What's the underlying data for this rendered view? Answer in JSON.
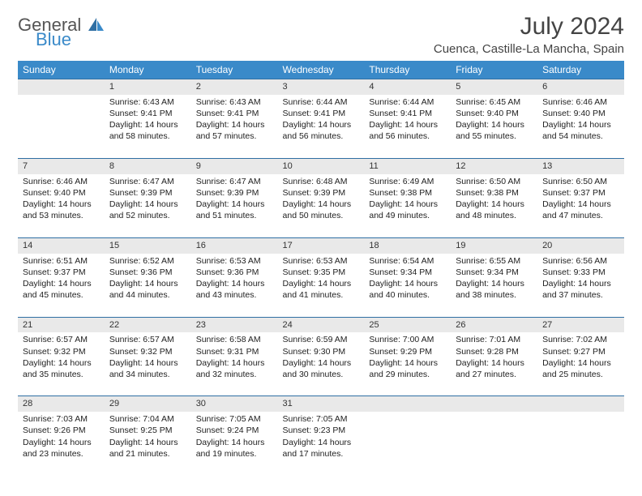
{
  "brand": {
    "general": "General",
    "blue": "Blue"
  },
  "header": {
    "month_title": "July 2024",
    "location": "Cuenca, Castille-La Mancha, Spain"
  },
  "colors": {
    "header_bg": "#3a8ac9",
    "header_text": "#ffffff",
    "daynum_bg": "#e9e9e9",
    "row_border": "#2f6fa3",
    "body_text": "#222222",
    "page_bg": "#ffffff"
  },
  "typography": {
    "title_fontsize_pt": 22,
    "location_fontsize_pt": 11,
    "header_fontsize_pt": 9,
    "cell_fontsize_pt": 8
  },
  "layout": {
    "columns": 7,
    "rows": 5,
    "first_day_offset": 1,
    "days_in_month": 31
  },
  "weekdays": [
    "Sunday",
    "Monday",
    "Tuesday",
    "Wednesday",
    "Thursday",
    "Friday",
    "Saturday"
  ],
  "days": [
    {
      "n": 1,
      "sunrise": "6:43 AM",
      "sunset": "9:41 PM",
      "daylight": "14 hours and 58 minutes."
    },
    {
      "n": 2,
      "sunrise": "6:43 AM",
      "sunset": "9:41 PM",
      "daylight": "14 hours and 57 minutes."
    },
    {
      "n": 3,
      "sunrise": "6:44 AM",
      "sunset": "9:41 PM",
      "daylight": "14 hours and 56 minutes."
    },
    {
      "n": 4,
      "sunrise": "6:44 AM",
      "sunset": "9:41 PM",
      "daylight": "14 hours and 56 minutes."
    },
    {
      "n": 5,
      "sunrise": "6:45 AM",
      "sunset": "9:40 PM",
      "daylight": "14 hours and 55 minutes."
    },
    {
      "n": 6,
      "sunrise": "6:46 AM",
      "sunset": "9:40 PM",
      "daylight": "14 hours and 54 minutes."
    },
    {
      "n": 7,
      "sunrise": "6:46 AM",
      "sunset": "9:40 PM",
      "daylight": "14 hours and 53 minutes."
    },
    {
      "n": 8,
      "sunrise": "6:47 AM",
      "sunset": "9:39 PM",
      "daylight": "14 hours and 52 minutes."
    },
    {
      "n": 9,
      "sunrise": "6:47 AM",
      "sunset": "9:39 PM",
      "daylight": "14 hours and 51 minutes."
    },
    {
      "n": 10,
      "sunrise": "6:48 AM",
      "sunset": "9:39 PM",
      "daylight": "14 hours and 50 minutes."
    },
    {
      "n": 11,
      "sunrise": "6:49 AM",
      "sunset": "9:38 PM",
      "daylight": "14 hours and 49 minutes."
    },
    {
      "n": 12,
      "sunrise": "6:50 AM",
      "sunset": "9:38 PM",
      "daylight": "14 hours and 48 minutes."
    },
    {
      "n": 13,
      "sunrise": "6:50 AM",
      "sunset": "9:37 PM",
      "daylight": "14 hours and 47 minutes."
    },
    {
      "n": 14,
      "sunrise": "6:51 AM",
      "sunset": "9:37 PM",
      "daylight": "14 hours and 45 minutes."
    },
    {
      "n": 15,
      "sunrise": "6:52 AM",
      "sunset": "9:36 PM",
      "daylight": "14 hours and 44 minutes."
    },
    {
      "n": 16,
      "sunrise": "6:53 AM",
      "sunset": "9:36 PM",
      "daylight": "14 hours and 43 minutes."
    },
    {
      "n": 17,
      "sunrise": "6:53 AM",
      "sunset": "9:35 PM",
      "daylight": "14 hours and 41 minutes."
    },
    {
      "n": 18,
      "sunrise": "6:54 AM",
      "sunset": "9:34 PM",
      "daylight": "14 hours and 40 minutes."
    },
    {
      "n": 19,
      "sunrise": "6:55 AM",
      "sunset": "9:34 PM",
      "daylight": "14 hours and 38 minutes."
    },
    {
      "n": 20,
      "sunrise": "6:56 AM",
      "sunset": "9:33 PM",
      "daylight": "14 hours and 37 minutes."
    },
    {
      "n": 21,
      "sunrise": "6:57 AM",
      "sunset": "9:32 PM",
      "daylight": "14 hours and 35 minutes."
    },
    {
      "n": 22,
      "sunrise": "6:57 AM",
      "sunset": "9:32 PM",
      "daylight": "14 hours and 34 minutes."
    },
    {
      "n": 23,
      "sunrise": "6:58 AM",
      "sunset": "9:31 PM",
      "daylight": "14 hours and 32 minutes."
    },
    {
      "n": 24,
      "sunrise": "6:59 AM",
      "sunset": "9:30 PM",
      "daylight": "14 hours and 30 minutes."
    },
    {
      "n": 25,
      "sunrise": "7:00 AM",
      "sunset": "9:29 PM",
      "daylight": "14 hours and 29 minutes."
    },
    {
      "n": 26,
      "sunrise": "7:01 AM",
      "sunset": "9:28 PM",
      "daylight": "14 hours and 27 minutes."
    },
    {
      "n": 27,
      "sunrise": "7:02 AM",
      "sunset": "9:27 PM",
      "daylight": "14 hours and 25 minutes."
    },
    {
      "n": 28,
      "sunrise": "7:03 AM",
      "sunset": "9:26 PM",
      "daylight": "14 hours and 23 minutes."
    },
    {
      "n": 29,
      "sunrise": "7:04 AM",
      "sunset": "9:25 PM",
      "daylight": "14 hours and 21 minutes."
    },
    {
      "n": 30,
      "sunrise": "7:05 AM",
      "sunset": "9:24 PM",
      "daylight": "14 hours and 19 minutes."
    },
    {
      "n": 31,
      "sunrise": "7:05 AM",
      "sunset": "9:23 PM",
      "daylight": "14 hours and 17 minutes."
    }
  ],
  "labels": {
    "sunrise": "Sunrise:",
    "sunset": "Sunset:",
    "daylight": "Daylight:"
  }
}
